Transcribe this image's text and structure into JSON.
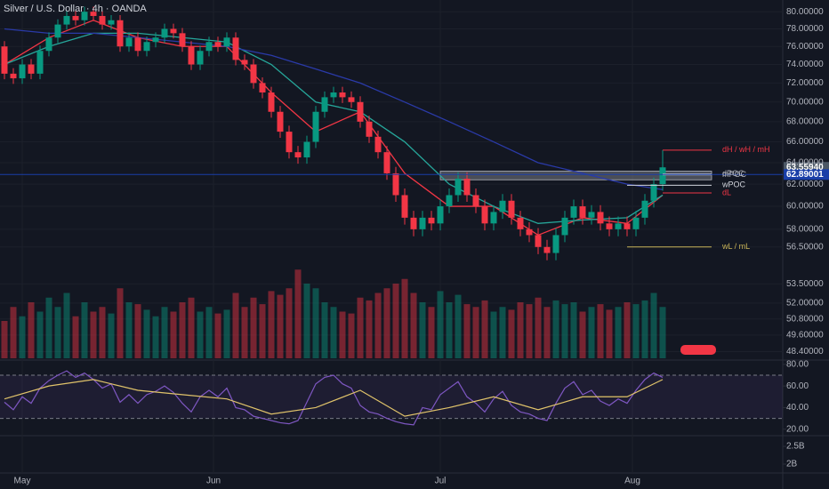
{
  "chart_data": {
    "type": "candlestick",
    "title": "Silver / U.S. Dollar · 4h · OANDA",
    "log_scale": true,
    "grid": true,
    "up_color": "#089981",
    "down_color": "#f23645",
    "ylim": [
      47.8,
      81.4
    ],
    "yticks": [
      {
        "value": 80,
        "label": "80.00000"
      },
      {
        "value": 78,
        "label": "78.00000"
      },
      {
        "value": 76,
        "label": "76.00000"
      },
      {
        "value": 74,
        "label": "74.00000"
      },
      {
        "value": 72,
        "label": "72.00000"
      },
      {
        "value": 70,
        "label": "70.00000"
      },
      {
        "value": 68,
        "label": "68.00000"
      },
      {
        "value": 66,
        "label": "66.00000"
      },
      {
        "value": 64,
        "label": "64.00000"
      },
      {
        "value": 62,
        "label": "62.00000"
      },
      {
        "value": 60,
        "label": "60.00000"
      },
      {
        "value": 58,
        "label": "58.00000"
      },
      {
        "value": 56.5,
        "label": "56.50000"
      },
      {
        "value": 53.5,
        "label": "53.50000"
      },
      {
        "value": 52,
        "label": "52.00000"
      },
      {
        "value": 50.8,
        "label": "50.80000"
      },
      {
        "value": 49.6,
        "label": "49.60000"
      },
      {
        "value": 48.4,
        "label": "48.40000"
      }
    ],
    "time_labels": [
      "May",
      "Jun",
      "Jul",
      "Aug"
    ],
    "time_label_index": [
      2,
      23.5,
      49,
      70.6
    ],
    "candles": [
      [
        76,
        76.6,
        72.4,
        73
      ],
      [
        73,
        73.6,
        71.9,
        72.5
      ],
      [
        72.5,
        74.6,
        71.9,
        74
      ],
      [
        74,
        74.6,
        72.4,
        73
      ],
      [
        73,
        76.1,
        72.4,
        75.5
      ],
      [
        75.5,
        77.6,
        74.9,
        77
      ],
      [
        77,
        79.1,
        76.4,
        78.5
      ],
      [
        78.5,
        80.1,
        77.9,
        79.5
      ],
      [
        79.5,
        80.1,
        78.4,
        79
      ],
      [
        79,
        80.6,
        78.4,
        80
      ],
      [
        80,
        80.6,
        78.9,
        79.5
      ],
      [
        79.5,
        80.1,
        77.9,
        78.5
      ],
      [
        78.5,
        79.6,
        77.9,
        79
      ],
      [
        79,
        79.6,
        75.4,
        76
      ],
      [
        76,
        77.6,
        75.4,
        77
      ],
      [
        77,
        77.6,
        74.9,
        75.5
      ],
      [
        75.5,
        77.1,
        74.9,
        76.5
      ],
      [
        76.5,
        77.6,
        75.9,
        77
      ],
      [
        77,
        78.6,
        76.4,
        78
      ],
      [
        78,
        78.6,
        76.9,
        77.5
      ],
      [
        77.5,
        78.1,
        75.4,
        76
      ],
      [
        76,
        76.6,
        73.4,
        74
      ],
      [
        74,
        76.1,
        73.4,
        75.5
      ],
      [
        75.5,
        77.1,
        74.9,
        76.5
      ],
      [
        76.5,
        77.1,
        75.4,
        76
      ],
      [
        76,
        77.6,
        75.4,
        77
      ],
      [
        77,
        77.6,
        73.9,
        74.5
      ],
      [
        74.5,
        75.1,
        73.4,
        74
      ],
      [
        74,
        74.6,
        71.4,
        72
      ],
      [
        72,
        72.6,
        70.4,
        71
      ],
      [
        71,
        71.6,
        68.4,
        69
      ],
      [
        69,
        69.6,
        66.4,
        67
      ],
      [
        67,
        67.6,
        64.4,
        65
      ],
      [
        65,
        65.6,
        63.9,
        64.5
      ],
      [
        64.5,
        66.6,
        63.9,
        66
      ],
      [
        66,
        69.6,
        65.4,
        69
      ],
      [
        69,
        71.1,
        68.4,
        70.5
      ],
      [
        70.5,
        71.6,
        69.9,
        71
      ],
      [
        71,
        71.6,
        69.9,
        70.5
      ],
      [
        70.5,
        71.1,
        69.4,
        70
      ],
      [
        70,
        70.6,
        67.4,
        68
      ],
      [
        68,
        68.6,
        65.9,
        66.5
      ],
      [
        66.5,
        67.1,
        64.4,
        65
      ],
      [
        65,
        65.6,
        62.4,
        63
      ],
      [
        63,
        63.6,
        60.4,
        61
      ],
      [
        61,
        61.6,
        58.4,
        59
      ],
      [
        59,
        59.6,
        57.4,
        58
      ],
      [
        58,
        59.6,
        57.4,
        59
      ],
      [
        59,
        59.6,
        57.9,
        58.5
      ],
      [
        58.5,
        60.6,
        57.9,
        60
      ],
      [
        60,
        61.6,
        59.4,
        61
      ],
      [
        61,
        63.1,
        60.4,
        62.5
      ],
      [
        62.5,
        63.1,
        60.4,
        61
      ],
      [
        61,
        61.6,
        59.4,
        60
      ],
      [
        60,
        60.6,
        57.9,
        58.5
      ],
      [
        58.5,
        60.1,
        57.9,
        59.5
      ],
      [
        59.5,
        61.1,
        58.9,
        60.5
      ],
      [
        60.5,
        61.1,
        58.4,
        59
      ],
      [
        59,
        59.6,
        57.4,
        58
      ],
      [
        58,
        58.6,
        56.9,
        57.5
      ],
      [
        57.5,
        58.1,
        55.9,
        56.5
      ],
      [
        56.5,
        57.1,
        55.4,
        56
      ],
      [
        56,
        58.1,
        55.4,
        57.5
      ],
      [
        57.5,
        59.6,
        56.9,
        59
      ],
      [
        59,
        60.6,
        58.4,
        60
      ],
      [
        60,
        60.6,
        58.4,
        59
      ],
      [
        59,
        60.1,
        58.4,
        59.5
      ],
      [
        59.5,
        60.1,
        57.9,
        58.5
      ],
      [
        58.5,
        59.1,
        57.4,
        58
      ],
      [
        58,
        59.1,
        57.4,
        58.5
      ],
      [
        58.5,
        59.1,
        57.4,
        58
      ],
      [
        58,
        59.6,
        57.4,
        59
      ],
      [
        59,
        61.1,
        58.4,
        60.5
      ],
      [
        60.5,
        62.6,
        59.9,
        62
      ],
      [
        62,
        65.2,
        61.4,
        63.5594
      ]
    ],
    "volume": [
      40,
      55,
      45,
      60,
      50,
      65,
      55,
      70,
      45,
      60,
      50,
      55,
      48,
      75,
      60,
      58,
      52,
      45,
      55,
      50,
      60,
      65,
      50,
      55,
      48,
      52,
      70,
      55,
      65,
      58,
      72,
      68,
      75,
      95,
      80,
      75,
      60,
      55,
      50,
      48,
      65,
      62,
      70,
      75,
      80,
      85,
      70,
      60,
      55,
      72,
      60,
      68,
      58,
      55,
      62,
      50,
      55,
      52,
      60,
      58,
      65,
      55,
      62,
      58,
      60,
      50,
      55,
      58,
      52,
      55,
      60,
      58,
      62,
      70,
      55
    ],
    "volume_lim": [
      0,
      100
    ],
    "moving_averages": [
      {
        "color": "#f23645",
        "x": [
          0,
          5,
          10,
          15,
          20,
          25,
          30,
          35,
          40,
          45,
          50,
          55,
          60,
          65,
          70,
          74
        ],
        "values": [
          74,
          77,
          79,
          77,
          76,
          76,
          71,
          67,
          69,
          63,
          60,
          60,
          57.5,
          59,
          58.5,
          61
        ]
      },
      {
        "color": "#26a69a",
        "x": [
          0,
          5,
          10,
          15,
          20,
          25,
          30,
          35,
          40,
          45,
          50,
          55,
          60,
          65,
          70,
          74
        ],
        "values": [
          74,
          76,
          77.5,
          77.5,
          77,
          76.5,
          74,
          70,
          69,
          66,
          62,
          60,
          58.5,
          58.8,
          59,
          61
        ]
      },
      {
        "color": "#2a3aa8",
        "x": [
          0,
          5,
          10,
          15,
          20,
          25,
          30,
          35,
          40,
          45,
          50,
          55,
          60,
          65,
          70,
          74
        ],
        "values": [
          78,
          77.5,
          77.5,
          77,
          76.5,
          76,
          75,
          73.5,
          72,
          70,
          68,
          66,
          64,
          63,
          62,
          61.5
        ]
      }
    ],
    "zone": {
      "low": 62.4,
      "high": 63.2,
      "from": 49
    },
    "levels": [
      {
        "label": "dH / wH / mH",
        "value": 65.2,
        "from": 74,
        "color": "#f23645"
      },
      {
        "label": "dPOC",
        "value": 62.95,
        "from": 74,
        "color": "#b2b5be"
      },
      {
        "label": "mPOC",
        "value": 62.85,
        "from": 74,
        "color": "#b2b5be"
      },
      {
        "label": "wPOC",
        "value": 61.9,
        "from": 70,
        "color": "#d1d4dc"
      },
      {
        "label": "dL",
        "value": 61.2,
        "from": 74,
        "color": "#f23645"
      },
      {
        "label": "wL / mL",
        "value": 56.5,
        "from": 70,
        "color": "#c9b458"
      }
    ],
    "price_badges": [
      {
        "value": 63.5594,
        "label": "63.55940",
        "color": "#4c5866"
      },
      {
        "value": 62.89001,
        "label": "62.89001",
        "color": "#1a3fa8"
      }
    ],
    "rsi": {
      "values": [
        45,
        38,
        50,
        44,
        58,
        65,
        70,
        74,
        68,
        72,
        66,
        58,
        62,
        45,
        52,
        44,
        52,
        55,
        60,
        54,
        44,
        36,
        50,
        56,
        50,
        58,
        40,
        38,
        32,
        30,
        28,
        26,
        25,
        28,
        45,
        62,
        68,
        70,
        62,
        58,
        42,
        36,
        34,
        30,
        27,
        25,
        24,
        40,
        38,
        52,
        58,
        64,
        50,
        44,
        36,
        48,
        55,
        42,
        36,
        34,
        30,
        28,
        44,
        58,
        64,
        52,
        56,
        46,
        42,
        48,
        44,
        56,
        66,
        72,
        68
      ],
      "color": "#7e57c2",
      "ma_x": [
        0,
        5,
        10,
        15,
        20,
        25,
        30,
        35,
        40,
        45,
        50,
        55,
        60,
        65,
        70,
        74
      ],
      "ma_values": [
        48,
        60,
        66,
        56,
        52,
        48,
        34,
        40,
        56,
        32,
        40,
        50,
        38,
        50,
        50,
        66
      ],
      "ma_color": "#e0c36a",
      "bands": [
        30,
        70
      ],
      "ylim": [
        14,
        84
      ],
      "yticks": [
        {
          "value": 80,
          "label": "80.00"
        },
        {
          "value": 60,
          "label": "60.00"
        },
        {
          "value": 40,
          "label": "40.00"
        },
        {
          "value": 20,
          "label": "20.00"
        }
      ]
    },
    "lower_pane": {
      "ylim": [
        1.75,
        2.8
      ],
      "yticks": [
        {
          "value": 2.5,
          "label": "2.5B"
        },
        {
          "value": 2,
          "label": "2B"
        }
      ]
    }
  }
}
